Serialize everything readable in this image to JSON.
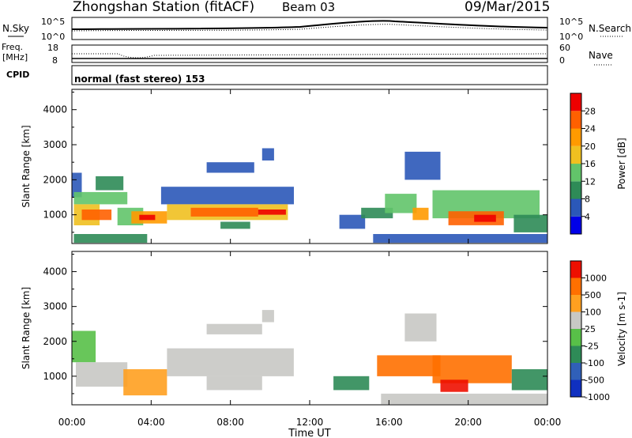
{
  "header": {
    "station": "Zhongshan Station (fitACF)",
    "beam": "Beam 03",
    "date": "09/Mar/2015"
  },
  "strip_nsky": {
    "left_label": "N.Sky",
    "right_label": "N.Search",
    "ticks": [
      "10^5",
      "10^0"
    ]
  },
  "strip_freq": {
    "left_label_1": "Freq.",
    "left_label_2": "[MHz]",
    "left_ticks": [
      "18",
      "8"
    ],
    "right_label": "Nave",
    "right_ticks": [
      "60",
      "0"
    ]
  },
  "strip_cpid": {
    "left_label": "CPID",
    "mode_text": "normal (fast stereo) 153"
  },
  "x_axis": {
    "ticks": [
      "00:00",
      "04:00",
      "08:00",
      "12:00",
      "16:00",
      "20:00",
      "00:00"
    ],
    "tick_hours": [
      0,
      4,
      8,
      12,
      16,
      20,
      24
    ],
    "label": "Time UT"
  },
  "chart_data": [
    {
      "type": "heatmap",
      "name": "power-panel",
      "ylabel": "Slant Range [km]",
      "yticks": [
        1000,
        2000,
        3000,
        4000
      ],
      "ylim": [
        180,
        4580
      ],
      "xlim_hours": [
        0,
        24
      ],
      "colorbar": {
        "label": "Power [dB]",
        "ticks": [
          "4",
          "8",
          "12",
          "16",
          "20",
          "24",
          "28"
        ],
        "colors": [
          "#0000e8",
          "#2b58b8",
          "#2e8b57",
          "#62c46a",
          "#f0c020",
          "#ff9a00",
          "#ff6000",
          "#ee0000"
        ]
      },
      "regions": [
        {
          "t0": 0.0,
          "t1": 0.5,
          "r0": 1500,
          "r1": 2200,
          "level": 1
        },
        {
          "t0": 0.1,
          "t1": 2.8,
          "r0": 1300,
          "r1": 1650,
          "level": 3
        },
        {
          "t0": 0.1,
          "t1": 1.4,
          "r0": 700,
          "r1": 1300,
          "level": 4
        },
        {
          "t0": 0.5,
          "t1": 2.0,
          "r0": 850,
          "r1": 1150,
          "level": 6
        },
        {
          "t0": 1.2,
          "t1": 2.6,
          "r0": 1700,
          "r1": 2100,
          "level": 2
        },
        {
          "t0": 2.3,
          "t1": 3.6,
          "r0": 700,
          "r1": 1200,
          "level": 3
        },
        {
          "t0": 3.0,
          "t1": 4.8,
          "r0": 750,
          "r1": 1100,
          "level": 5
        },
        {
          "t0": 3.4,
          "t1": 4.2,
          "r0": 850,
          "r1": 1000,
          "level": 7
        },
        {
          "t0": 0.1,
          "t1": 3.8,
          "r0": 200,
          "r1": 450,
          "level": 2
        },
        {
          "t0": 4.5,
          "t1": 11.2,
          "r0": 1300,
          "r1": 1800,
          "level": 1
        },
        {
          "t0": 4.8,
          "t1": 10.9,
          "r0": 850,
          "r1": 1300,
          "level": 4
        },
        {
          "t0": 6.0,
          "t1": 9.4,
          "r0": 950,
          "r1": 1200,
          "level": 6
        },
        {
          "t0": 9.4,
          "t1": 10.8,
          "r0": 1000,
          "r1": 1150,
          "level": 7
        },
        {
          "t0": 7.5,
          "t1": 9.0,
          "r0": 600,
          "r1": 800,
          "level": 2
        },
        {
          "t0": 6.8,
          "t1": 9.2,
          "r0": 2200,
          "r1": 2500,
          "level": 1
        },
        {
          "t0": 9.6,
          "t1": 10.2,
          "r0": 2550,
          "r1": 2900,
          "level": 1
        },
        {
          "t0": 13.5,
          "t1": 14.8,
          "r0": 600,
          "r1": 1000,
          "level": 1
        },
        {
          "t0": 14.6,
          "t1": 16.2,
          "r0": 900,
          "r1": 1200,
          "level": 2
        },
        {
          "t0": 15.8,
          "t1": 17.4,
          "r0": 1050,
          "r1": 1600,
          "level": 3
        },
        {
          "t0": 17.2,
          "t1": 18.0,
          "r0": 850,
          "r1": 1200,
          "level": 5
        },
        {
          "t0": 16.8,
          "t1": 18.6,
          "r0": 2000,
          "r1": 2800,
          "level": 1
        },
        {
          "t0": 18.2,
          "t1": 23.6,
          "r0": 900,
          "r1": 1700,
          "level": 3
        },
        {
          "t0": 19.0,
          "t1": 21.8,
          "r0": 700,
          "r1": 1100,
          "level": 6
        },
        {
          "t0": 20.3,
          "t1": 21.4,
          "r0": 800,
          "r1": 1000,
          "level": 7
        },
        {
          "t0": 22.3,
          "t1": 24.0,
          "r0": 500,
          "r1": 1000,
          "level": 2
        },
        {
          "t0": 15.2,
          "t1": 24.0,
          "r0": 200,
          "r1": 450,
          "level": 1
        }
      ]
    },
    {
      "type": "heatmap",
      "name": "velocity-panel",
      "ylabel": "Slant Range [km]",
      "yticks": [
        1000,
        2000,
        3000,
        4000
      ],
      "ylim": [
        180,
        4580
      ],
      "xlim_hours": [
        0,
        24
      ],
      "colorbar": {
        "label": "Velocity [m s-1]",
        "ticks": [
          "1000",
          "500",
          "100",
          "25",
          "-25",
          "-100",
          "-500",
          "-1000"
        ],
        "colors": [
          "#1030c0",
          "#3060b8",
          "#2e8b57",
          "#58c048",
          "#c8c8c4",
          "#ffa020",
          "#ff7000",
          "#ee1000"
        ]
      },
      "regions": [
        {
          "t0": 0.0,
          "t1": 1.2,
          "r0": 1400,
          "r1": 2300,
          "level": 3
        },
        {
          "t0": 0.2,
          "t1": 2.8,
          "r0": 700,
          "r1": 1400,
          "level": 4
        },
        {
          "t0": 2.6,
          "t1": 4.8,
          "r0": 450,
          "r1": 1200,
          "level": 5
        },
        {
          "t0": 4.8,
          "t1": 11.2,
          "r0": 1000,
          "r1": 1800,
          "level": 4
        },
        {
          "t0": 6.8,
          "t1": 9.6,
          "r0": 600,
          "r1": 1000,
          "level": 4
        },
        {
          "t0": 6.8,
          "t1": 9.6,
          "r0": 2200,
          "r1": 2500,
          "level": 4
        },
        {
          "t0": 9.6,
          "t1": 10.2,
          "r0": 2550,
          "r1": 2900,
          "level": 4
        },
        {
          "t0": 13.2,
          "t1": 15.0,
          "r0": 600,
          "r1": 1000,
          "level": 2
        },
        {
          "t0": 15.4,
          "t1": 18.6,
          "r0": 1000,
          "r1": 1600,
          "level": 6
        },
        {
          "t0": 16.8,
          "t1": 18.4,
          "r0": 2000,
          "r1": 2800,
          "level": 4
        },
        {
          "t0": 18.2,
          "t1": 22.2,
          "r0": 800,
          "r1": 1600,
          "level": 6
        },
        {
          "t0": 18.6,
          "t1": 20.0,
          "r0": 550,
          "r1": 900,
          "level": 7
        },
        {
          "t0": 22.2,
          "t1": 24.0,
          "r0": 600,
          "r1": 1200,
          "level": 2
        },
        {
          "t0": 15.6,
          "t1": 24.0,
          "r0": 200,
          "r1": 500,
          "level": 4
        }
      ]
    }
  ]
}
